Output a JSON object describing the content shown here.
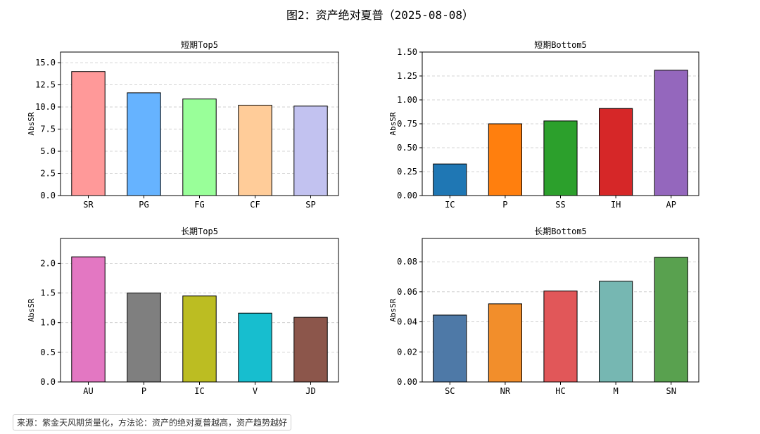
{
  "title": "图2：资产绝对夏普（2025-08-08）",
  "source_note": "来源：紫金天风期货量化，方法论：资产的绝对夏普越高，资产趋势越好",
  "chart_data": [
    {
      "type": "bar",
      "title": "短期Top5",
      "ylabel": "AbsSR",
      "categories": [
        "SR",
        "PG",
        "FG",
        "CF",
        "SP"
      ],
      "values": [
        14.0,
        11.6,
        10.9,
        10.2,
        10.1
      ],
      "colors": [
        "#ff9999",
        "#66b3ff",
        "#99ff99",
        "#ffcc99",
        "#c2c2f0"
      ],
      "ylim": [
        0,
        16.2
      ],
      "yticks": [
        0,
        2.5,
        5,
        7.5,
        10,
        12.5,
        15
      ],
      "ytick_labels": [
        "0.0",
        "2.5",
        "5.0",
        "7.5",
        "10.0",
        "12.5",
        "15.0"
      ],
      "grid": "y-dashed"
    },
    {
      "type": "bar",
      "title": "短期Bottom5",
      "ylabel": "AbsSR",
      "categories": [
        "IC",
        "P",
        "SS",
        "IH",
        "AP"
      ],
      "values": [
        0.33,
        0.75,
        0.78,
        0.91,
        1.31
      ],
      "colors": [
        "#1f77b4",
        "#ff7f0e",
        "#2ca02c",
        "#d62728",
        "#9467bd"
      ],
      "ylim": [
        0,
        1.5
      ],
      "yticks": [
        0,
        0.25,
        0.5,
        0.75,
        1.0,
        1.25,
        1.5
      ],
      "ytick_labels": [
        "0.00",
        "0.25",
        "0.50",
        "0.75",
        "1.00",
        "1.25",
        "1.50"
      ],
      "grid": "y-dashed"
    },
    {
      "type": "bar",
      "title": "长期Top5",
      "ylabel": "AbsSR",
      "categories": [
        "AU",
        "P",
        "IC",
        "V",
        "JD"
      ],
      "values": [
        2.11,
        1.5,
        1.45,
        1.16,
        1.09
      ],
      "colors": [
        "#e377c2",
        "#7f7f7f",
        "#bcbd22",
        "#17becf",
        "#8c564b"
      ],
      "ylim": [
        0,
        2.42
      ],
      "yticks": [
        0,
        0.5,
        1.0,
        1.5,
        2.0
      ],
      "ytick_labels": [
        "0.0",
        "0.5",
        "1.0",
        "1.5",
        "2.0"
      ],
      "grid": "y-dashed"
    },
    {
      "type": "bar",
      "title": "长期Bottom5",
      "ylabel": "AbsSR",
      "categories": [
        "SC",
        "NR",
        "HC",
        "M",
        "SN"
      ],
      "values": [
        0.0445,
        0.052,
        0.0605,
        0.067,
        0.083
      ],
      "colors": [
        "#4e79a7",
        "#f28e2b",
        "#e15759",
        "#76b7b2",
        "#59a14f"
      ],
      "ylim": [
        0,
        0.0955
      ],
      "yticks": [
        0,
        0.02,
        0.04,
        0.06,
        0.08
      ],
      "ytick_labels": [
        "0.00",
        "0.02",
        "0.04",
        "0.06",
        "0.08"
      ],
      "grid": "y-dashed"
    }
  ]
}
